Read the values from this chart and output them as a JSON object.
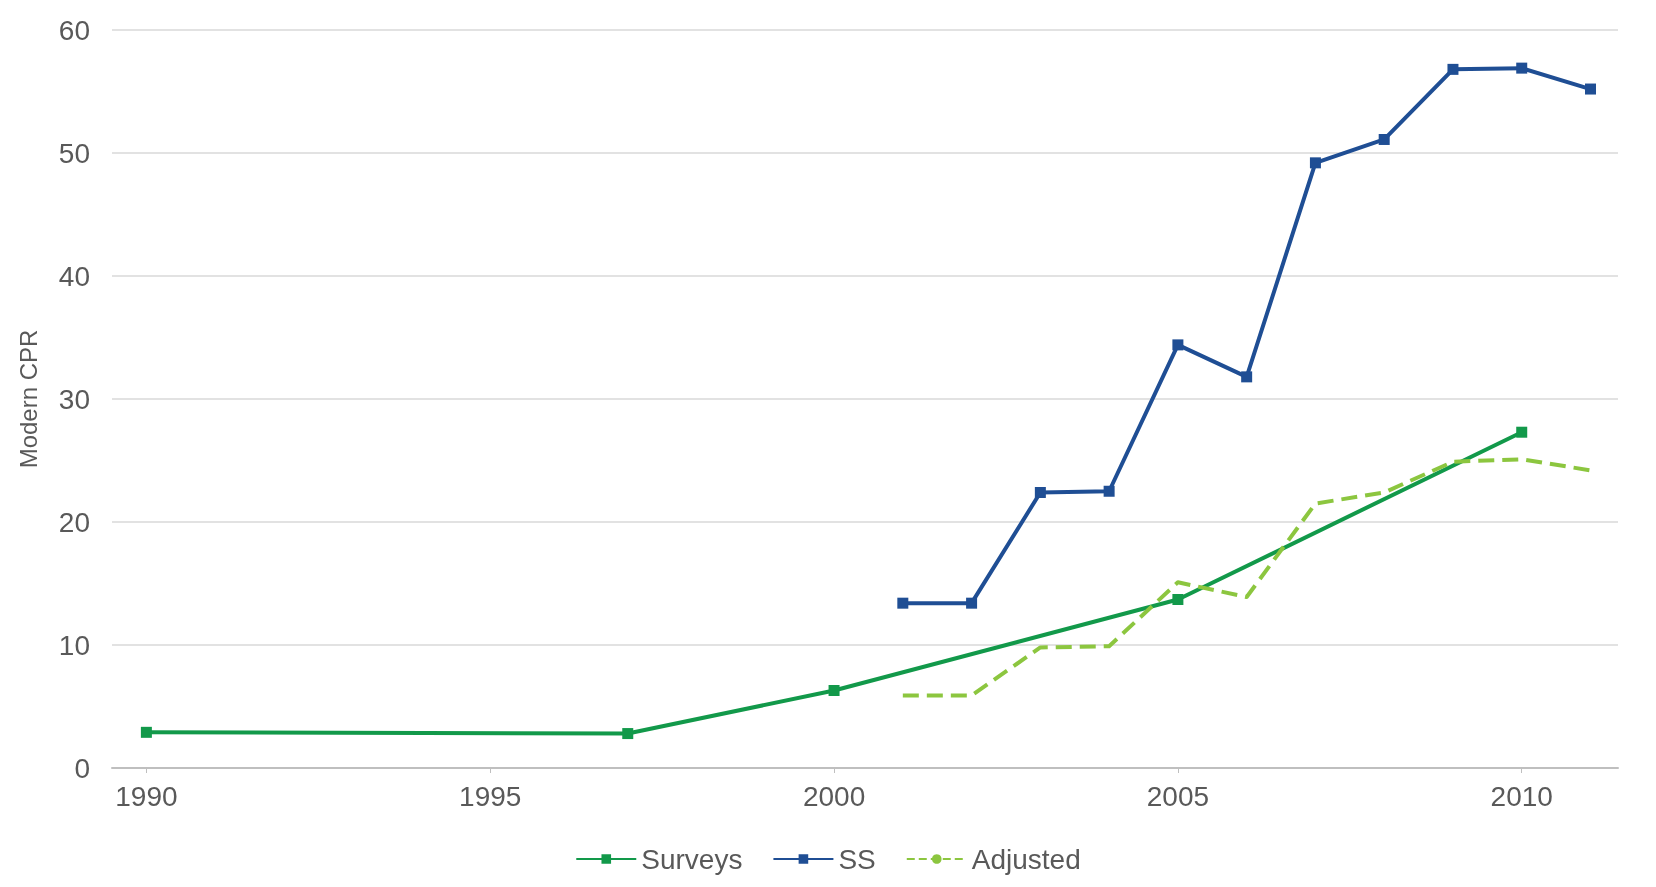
{
  "chart_data": {
    "type": "line",
    "ylabel": "Modern CPR",
    "xlim": [
      1989.5,
      2011.4
    ],
    "xticks": [
      1990,
      1995,
      2000,
      2005,
      2010
    ],
    "ylim": [
      0,
      60
    ],
    "yticks": [
      0,
      10,
      20,
      30,
      40,
      50,
      60
    ],
    "grid": "y",
    "legend": "bottom",
    "series": [
      {
        "name": "Surveys",
        "color": "#12994a",
        "marker": "square",
        "line_style": "solid",
        "x": [
          1990,
          1997,
          2000,
          2005,
          2010
        ],
        "values": [
          2.9,
          2.8,
          6.3,
          13.7,
          27.3
        ]
      },
      {
        "name": "SS",
        "color": "#1f4e94",
        "marker": "square",
        "line_style": "solid",
        "x": [
          2001,
          2002,
          2003,
          2004,
          2005,
          2006,
          2007,
          2008,
          2009,
          2010,
          2011
        ],
        "values": [
          13.4,
          13.4,
          22.4,
          22.5,
          34.4,
          31.8,
          49.2,
          51.1,
          56.8,
          56.9,
          55.2
        ]
      },
      {
        "name": "Adjusted",
        "color": "#8cc63f",
        "marker": "none",
        "line_style": "dashed",
        "x": [
          2001,
          2002,
          2003,
          2004,
          2005,
          2006,
          2007,
          2008,
          2009,
          2010,
          2011
        ],
        "values": [
          5.9,
          5.9,
          9.8,
          9.9,
          15.1,
          13.9,
          21.5,
          22.4,
          24.9,
          25.1,
          24.2
        ]
      }
    ]
  }
}
